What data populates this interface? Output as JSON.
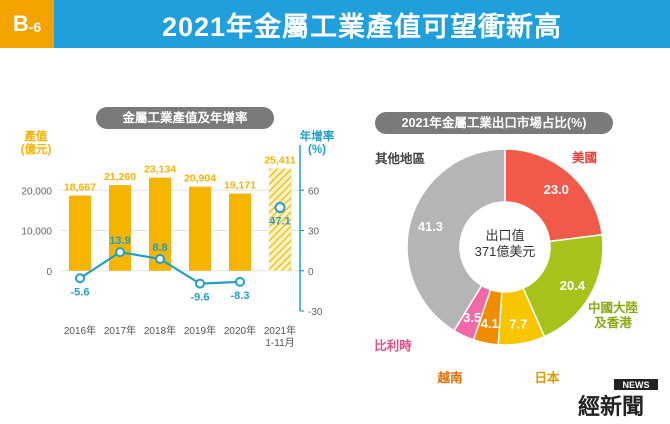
{
  "header": {
    "badge_prefix": "B",
    "badge_number": "-6",
    "title": "2021年金屬工業產值可望衝新高"
  },
  "colors": {
    "header_blue": "#1fa0dc",
    "badge_orange": "#f5a300",
    "bar_gold": "#f5b400",
    "line_blue": "#1fa0c8",
    "pill_gray": "#7a7a7a"
  },
  "chart_data": [
    {
      "type": "bar",
      "title": "金屬工業產值及年增率",
      "categories": [
        "2016年",
        "2017年",
        "2018年",
        "2019年",
        "2020年",
        "2021年\n1-11月"
      ],
      "ylabel": "產值\n(億元)",
      "y2label": "年增率\n(%)",
      "yticks": [
        "20,000",
        "10,000",
        "0"
      ],
      "y2ticks": [
        "60",
        "30",
        "0",
        "-30"
      ],
      "ylim": [
        -10000,
        30000
      ],
      "y2lim": [
        -30,
        90
      ],
      "series": [
        {
          "values": [
            18667,
            21260,
            23134,
            20904,
            19171,
            25411
          ],
          "labels": [
            "18,667",
            "21,260",
            "23,134",
            "20,904",
            "19,171",
            "25,411"
          ],
          "last_hatched": true
        },
        {
          "type": "line",
          "values": [
            -5.6,
            13.9,
            8.8,
            -9.6,
            -8.3,
            47.1
          ],
          "labels": [
            "-5.6",
            "13.9",
            "8.8",
            "-9.6",
            "-8.3",
            "47.1"
          ],
          "last_dashed": true
        }
      ]
    },
    {
      "type": "pie",
      "title": "2021年金屬工業出口市場占比(%)",
      "center_label_1": "出口值",
      "center_label_2": "371億美元",
      "slices": [
        {
          "label": "美國",
          "value": 23.0,
          "value_label": "23.0",
          "color": "#f15a4a",
          "label_color": "#e8403a"
        },
        {
          "label": "中國大陸\n及香港",
          "value": 20.4,
          "value_label": "20.4",
          "color": "#a7c21a",
          "label_color": "#8aaa12"
        },
        {
          "label": "日本",
          "value": 7.7,
          "value_label": "7.7",
          "color": "#f7c600",
          "label_color": "#d99a00"
        },
        {
          "label": "越南",
          "value": 4.1,
          "value_label": "4.1",
          "color": "#f08c00",
          "label_color": "#e06d00"
        },
        {
          "label": "比利時",
          "value": 3.5,
          "value_label": "3.5",
          "color": "#f06aa8",
          "label_color": "#e0508f"
        },
        {
          "label": "其他地區",
          "value": 41.3,
          "value_label": "41.3",
          "color": "#b5b5b5",
          "label_color": "#444444"
        }
      ]
    }
  ],
  "logo": {
    "text_news": "NEWS",
    "text_main": "經新聞"
  }
}
